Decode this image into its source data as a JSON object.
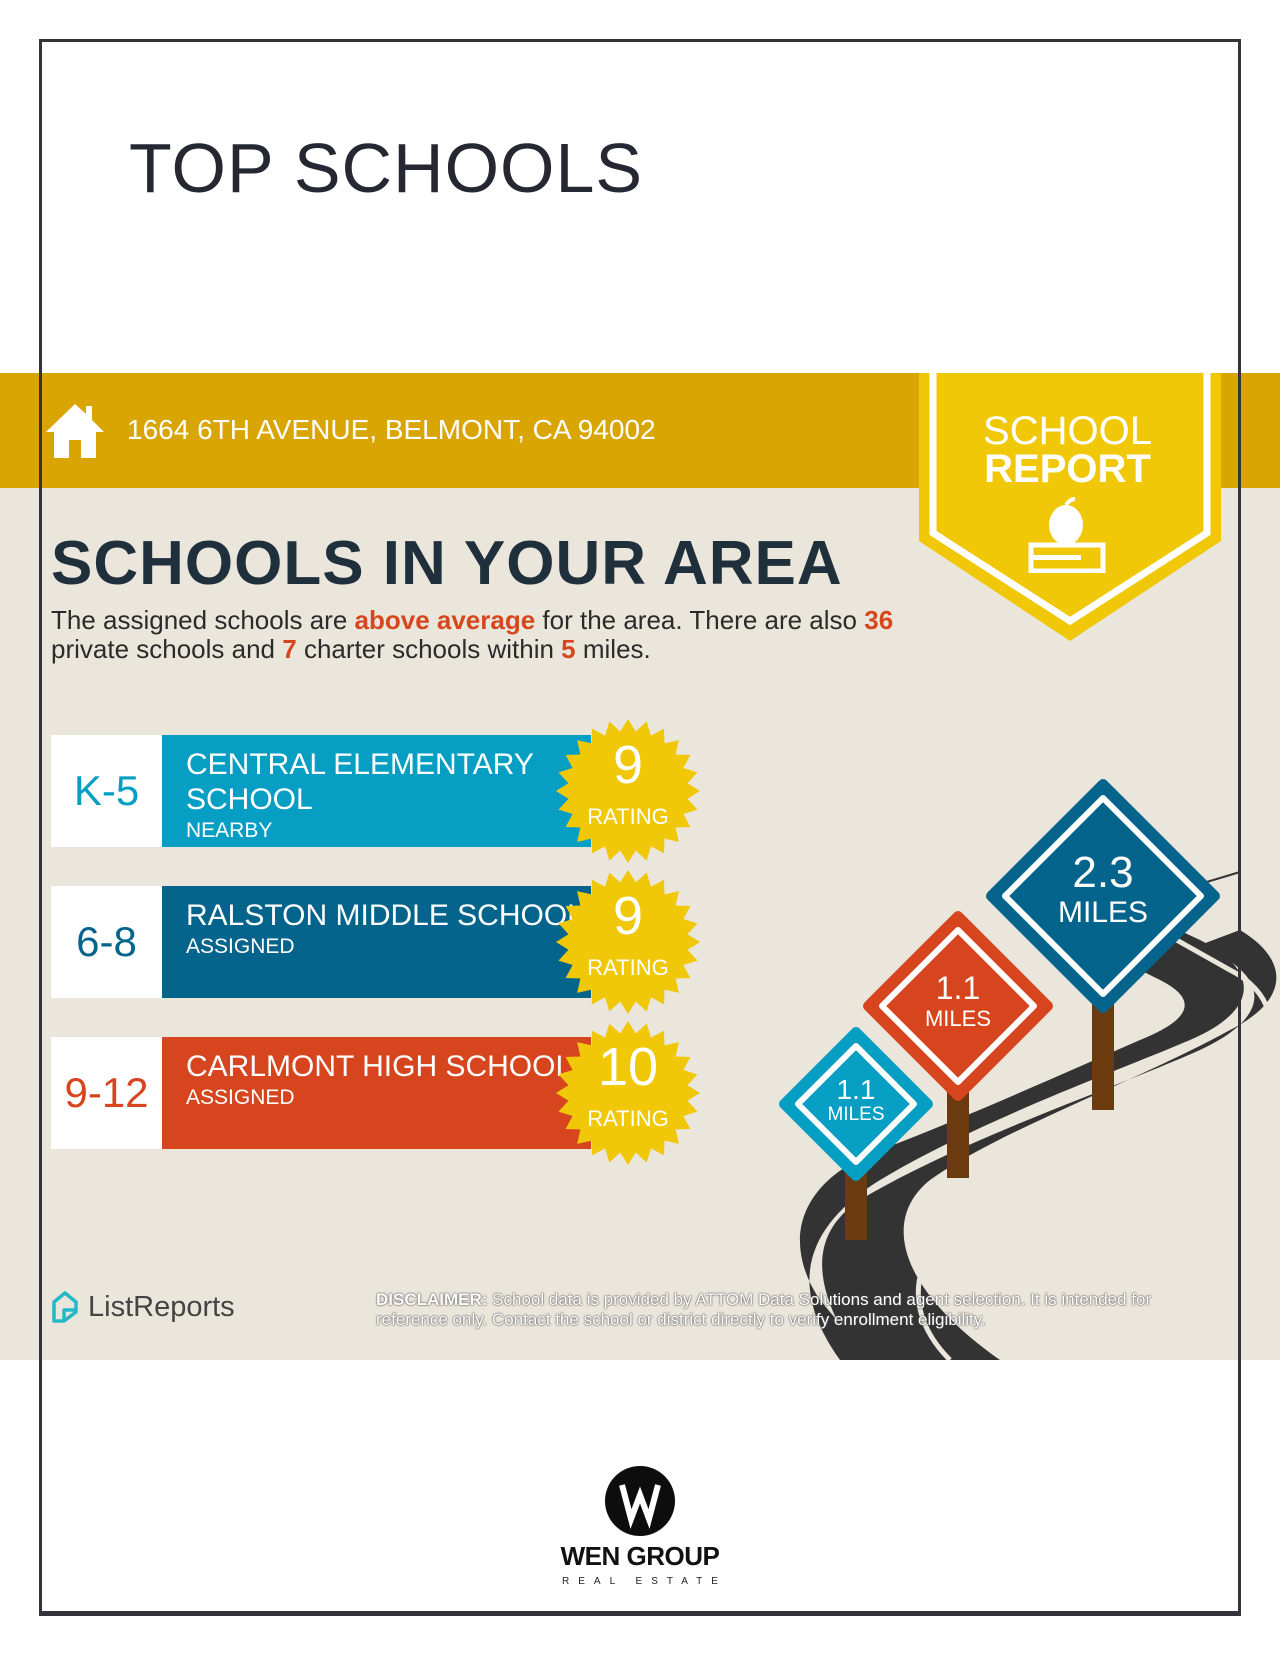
{
  "page": {
    "title": "TOP SCHOOLS"
  },
  "banner": {
    "address": "1664 6TH AVENUE, BELMONT, CA 94002",
    "icon": "home-icon",
    "color": "#d8a503"
  },
  "ribbon": {
    "line1": "SCHOOL",
    "line2": "REPORT",
    "icon": "apple-on-book-icon",
    "color": "#f0c808"
  },
  "section": {
    "heading": "SCHOOLS IN YOUR AREA",
    "lead": {
      "p1": "The assigned schools are ",
      "hl1": "above average",
      "p2": " for the area. There are also ",
      "hl2": "36",
      "p3": " private schools and ",
      "hl3": "7",
      "p4": " charter schools within ",
      "hl4": "5",
      "p5": " miles."
    }
  },
  "schools": [
    {
      "grade": "K-5",
      "name": "CENTRAL ELEMENTARY SCHOOL",
      "status": "NEARBY",
      "rating": "9",
      "rating_label": "RATING",
      "color": "#069fc3",
      "distance": "1.1",
      "distance_unit": "MILES"
    },
    {
      "grade": "6-8",
      "name": "RALSTON MIDDLE SCHOOL",
      "status": "ASSIGNED",
      "rating": "9",
      "rating_label": "RATING",
      "color": "#05648c",
      "distance": "2.3",
      "distance_unit": "MILES"
    },
    {
      "grade": "9-12",
      "name": "CARLMONT HIGH SCHOOL",
      "status": "ASSIGNED",
      "rating": "10",
      "rating_label": "RATING",
      "color": "#d7451f",
      "distance": "1.1",
      "distance_unit": "MILES"
    }
  ],
  "footer": {
    "brand": "ListReports",
    "disclaimer_label": "DISCLAIMER:",
    "disclaimer": " School data is provided by ATTOM Data Solutions and agent selection. It is intended for reference only. Contact the school or district directly to verify enrollment eligibility."
  },
  "agent_logo": {
    "name": "WEN GROUP",
    "sub": "REAL ESTATE",
    "mark": "W"
  }
}
